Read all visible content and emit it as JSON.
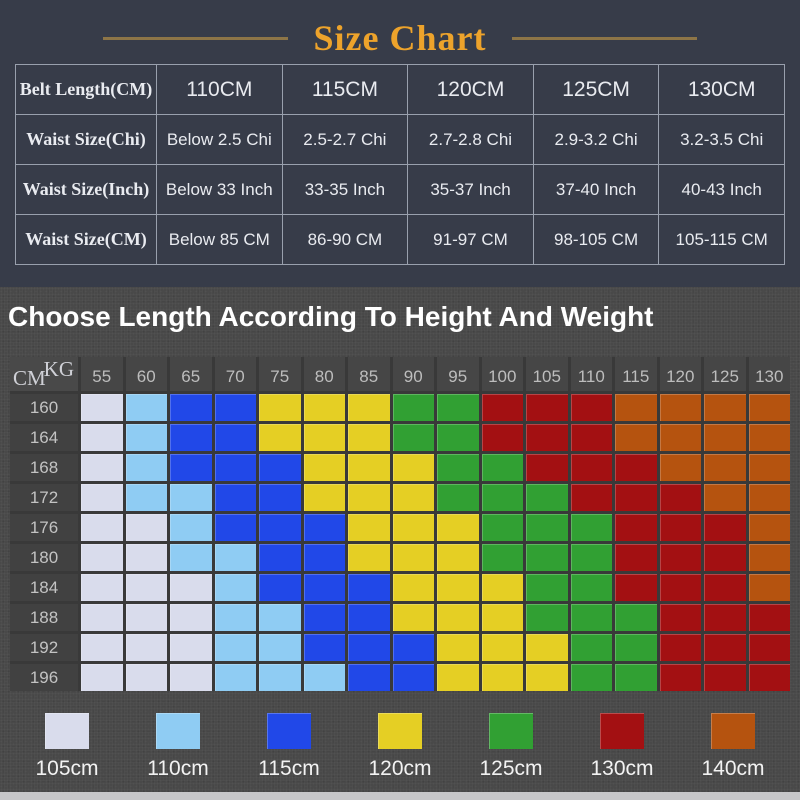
{
  "title": {
    "text": "Size Chart"
  },
  "size_table": {
    "rows": [
      {
        "label": "Belt Length(CM)",
        "values": [
          "110CM",
          "115CM",
          "120CM",
          "125CM",
          "130CM"
        ]
      },
      {
        "label": "Waist Size(Chi)",
        "values": [
          "Below 2.5 Chi",
          "2.5-2.7 Chi",
          "2.7-2.8 Chi",
          "2.9-3.2 Chi",
          "3.2-3.5 Chi"
        ]
      },
      {
        "label": "Waist Size(Inch)",
        "values": [
          "Below 33 Inch",
          "33-35 Inch",
          "35-37 Inch",
          "37-40 Inch",
          "40-43 Inch"
        ]
      },
      {
        "label": "Waist Size(CM)",
        "values": [
          "Below 85 CM",
          "86-90 CM",
          "91-97 CM",
          "98-105 CM",
          "105-115 CM"
        ]
      }
    ]
  },
  "heatmap": {
    "heading": "Choose Length According To Height And Weight",
    "corner": {
      "top": "KG",
      "bottom": "CM"
    },
    "kg_labels": [
      "55",
      "60",
      "65",
      "70",
      "75",
      "80",
      "85",
      "90",
      "95",
      "100",
      "105",
      "110",
      "115",
      "120",
      "125",
      "130"
    ],
    "cm_labels": [
      "160",
      "164",
      "168",
      "172",
      "176",
      "180",
      "184",
      "188",
      "192",
      "196"
    ]
  },
  "legend": [
    {
      "label": "105cm",
      "color": "#d9dcec"
    },
    {
      "label": "110cm",
      "color": "#8fccf3"
    },
    {
      "label": "115cm",
      "color": "#2148e8"
    },
    {
      "label": "120cm",
      "color": "#e5cf24"
    },
    {
      "label": "125cm",
      "color": "#31a033"
    },
    {
      "label": "130cm",
      "color": "#a31012"
    },
    {
      "label": "140cm",
      "color": "#b5530f"
    }
  ],
  "colors": {
    "title_gold": "#eda32b",
    "title_line": "#8d7547",
    "top_background": "#373c49",
    "bottom_background": "#494949",
    "table_border": "#99a0ad"
  },
  "chart_data": {
    "type": "heatmap",
    "title": "Choose Length According To Height And Weight",
    "x_label": "KG",
    "y_label": "CM",
    "x": [
      55,
      60,
      65,
      70,
      75,
      80,
      85,
      90,
      95,
      100,
      105,
      110,
      115,
      120,
      125,
      130
    ],
    "y": [
      160,
      164,
      168,
      172,
      176,
      180,
      184,
      188,
      192,
      196
    ],
    "value_meaning": "recommended belt length in cm",
    "legend_position": "bottom",
    "matrix": [
      [
        105,
        110,
        115,
        115,
        120,
        120,
        120,
        125,
        125,
        130,
        130,
        130,
        140,
        140,
        140,
        140
      ],
      [
        105,
        110,
        115,
        115,
        120,
        120,
        120,
        125,
        125,
        130,
        130,
        130,
        140,
        140,
        140,
        140
      ],
      [
        105,
        110,
        115,
        115,
        115,
        120,
        120,
        120,
        125,
        125,
        130,
        130,
        130,
        140,
        140,
        140
      ],
      [
        105,
        110,
        110,
        115,
        115,
        120,
        120,
        120,
        125,
        125,
        125,
        130,
        130,
        130,
        140,
        140
      ],
      [
        105,
        105,
        110,
        115,
        115,
        115,
        120,
        120,
        120,
        125,
        125,
        125,
        130,
        130,
        130,
        140
      ],
      [
        105,
        105,
        110,
        110,
        115,
        115,
        120,
        120,
        120,
        125,
        125,
        125,
        130,
        130,
        130,
        140
      ],
      [
        105,
        105,
        105,
        110,
        115,
        115,
        115,
        120,
        120,
        120,
        125,
        125,
        130,
        130,
        130,
        140
      ],
      [
        105,
        105,
        105,
        110,
        110,
        115,
        115,
        120,
        120,
        120,
        125,
        125,
        125,
        130,
        130,
        130
      ],
      [
        105,
        105,
        105,
        110,
        110,
        115,
        115,
        115,
        120,
        120,
        120,
        125,
        125,
        130,
        130,
        130
      ],
      [
        105,
        105,
        105,
        110,
        110,
        110,
        115,
        115,
        120,
        120,
        120,
        125,
        125,
        130,
        130,
        130
      ]
    ]
  }
}
